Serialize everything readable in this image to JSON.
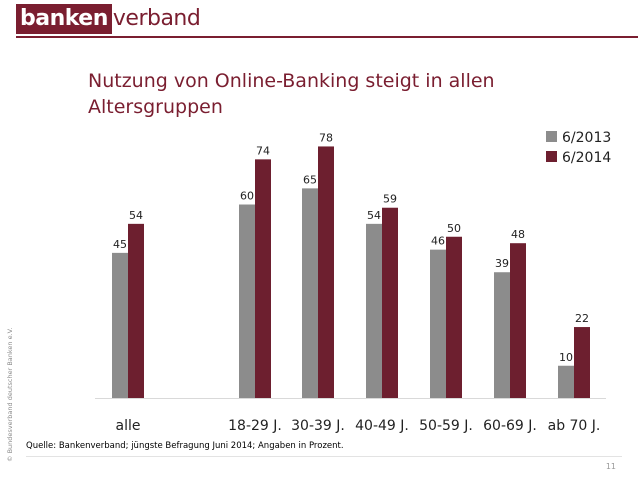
{
  "logo": {
    "part1": "banken",
    "part2": "verband"
  },
  "slide": {
    "title": "Nutzung von Online-Banking steigt in allen Altersgruppen",
    "copyright": "© Bundesverband deutscher Banken e.V.",
    "source": "Quelle: Bankenverband; jüngste Befragung Juni 2014; Angaben in Prozent.",
    "page_number": "11"
  },
  "colors": {
    "brand": "#7a1e30",
    "series_2013": "#8c8c8c",
    "series_2014": "#6d1f2f"
  },
  "chart_data": {
    "type": "bar",
    "categories": [
      "alle",
      "18-29 J.",
      "30-39 J.",
      "40-49 J.",
      "50-59 J.",
      "60-69 J.",
      "ab 70 J."
    ],
    "series": [
      {
        "name": "6/2013",
        "values": [
          45,
          60,
          65,
          54,
          46,
          39,
          10
        ]
      },
      {
        "name": "6/2014",
        "values": [
          54,
          74,
          78,
          59,
          50,
          48,
          22
        ]
      }
    ],
    "ylim": [
      0,
      100
    ],
    "legend": "top-right",
    "grid": false,
    "data_labels": true
  }
}
